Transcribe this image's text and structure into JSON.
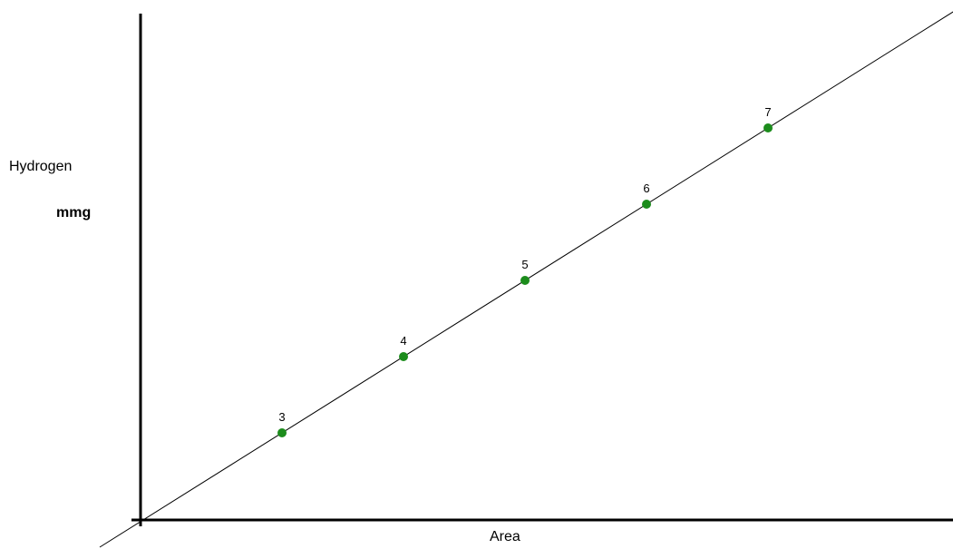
{
  "chart_data": {
    "type": "scatter",
    "xlabel": "Area",
    "ylabel": [
      "Hydrogen",
      "mmg"
    ],
    "grid": false,
    "points": [
      {
        "label": "3",
        "x": 3,
        "y": 3
      },
      {
        "label": "4",
        "x": 4,
        "y": 4
      },
      {
        "label": "5",
        "x": 5,
        "y": 5
      },
      {
        "label": "6",
        "x": 6,
        "y": 6
      },
      {
        "label": "7",
        "x": 7,
        "y": 7
      }
    ],
    "fit_line": {
      "from": {
        "x": 1.5,
        "y": 1.5
      },
      "to": {
        "x": 9.5,
        "y": 9.5
      }
    },
    "point_color": "#1c8c1c",
    "line_color": "#000000",
    "axis_color": "#000000"
  }
}
